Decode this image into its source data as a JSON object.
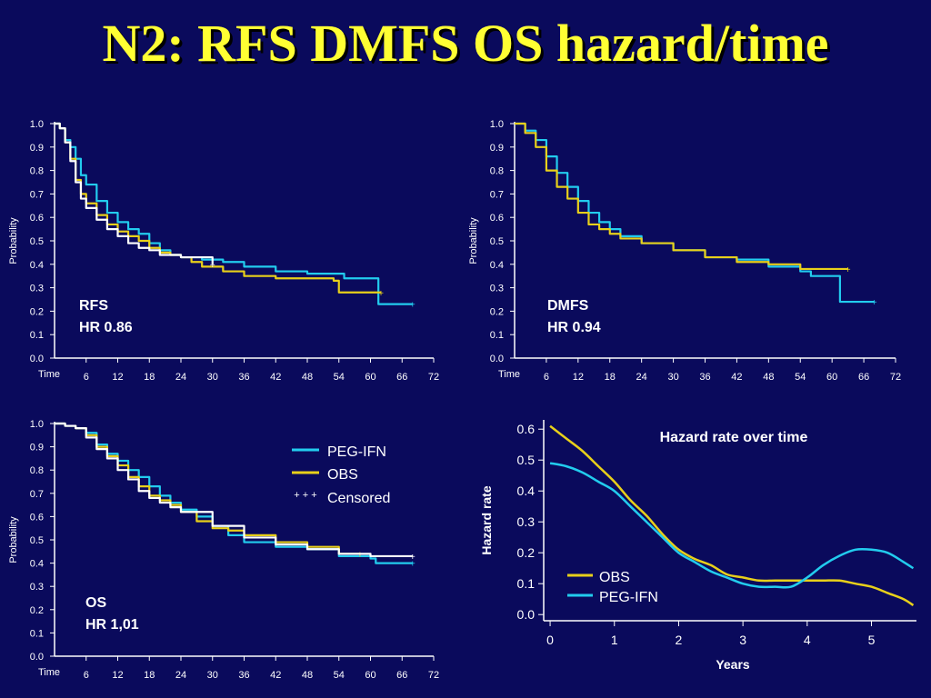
{
  "title": "N2: RFS DMFS OS hazard/time",
  "colors": {
    "background": "#0a0a5c",
    "title": "#ffff33",
    "peg_ifn": "#22ccee",
    "obs": "#e8d01a",
    "obs_km": "#ffffff",
    "axis": "#ffffff"
  },
  "km_axis": {
    "ylabel": "Probability",
    "x_start_label": "Time",
    "x_ticks": [
      "6",
      "12",
      "18",
      "24",
      "30",
      "36",
      "42",
      "48",
      "54",
      "60",
      "66",
      "72"
    ],
    "y_ticks": [
      "0.0",
      "0.1",
      "0.2",
      "0.3",
      "0.4",
      "0.5",
      "0.6",
      "0.7",
      "0.8",
      "0.9",
      "1.0"
    ]
  },
  "legend": {
    "peg_ifn": "PEG-IFN",
    "obs": "OBS",
    "censored_marker": "+ + +",
    "censored": "Censored"
  },
  "chart_data": [
    {
      "type": "line",
      "id": "rfs",
      "label_line1": "RFS",
      "label_line2": "HR 0.86",
      "xlim": [
        0,
        72
      ],
      "ylim": [
        0,
        1
      ],
      "series": [
        {
          "name": "PEG-IFN",
          "color": "#22ccee",
          "points": [
            [
              0,
              1.0
            ],
            [
              1,
              0.98
            ],
            [
              2,
              0.93
            ],
            [
              3,
              0.9
            ],
            [
              4,
              0.85
            ],
            [
              5,
              0.78
            ],
            [
              6,
              0.74
            ],
            [
              8,
              0.67
            ],
            [
              10,
              0.62
            ],
            [
              12,
              0.58
            ],
            [
              14,
              0.55
            ],
            [
              16,
              0.53
            ],
            [
              18,
              0.49
            ],
            [
              20,
              0.46
            ],
            [
              22,
              0.44
            ],
            [
              24,
              0.43
            ],
            [
              28,
              0.42
            ],
            [
              32,
              0.41
            ],
            [
              36,
              0.39
            ],
            [
              42,
              0.37
            ],
            [
              48,
              0.36
            ],
            [
              54,
              0.36
            ],
            [
              55,
              0.34
            ],
            [
              61,
              0.34
            ],
            [
              61.5,
              0.23
            ],
            [
              68,
              0.23
            ]
          ]
        },
        {
          "name": "OBS",
          "color": "#e8d01a",
          "points": [
            [
              0,
              1.0
            ],
            [
              1,
              0.98
            ],
            [
              2,
              0.92
            ],
            [
              3,
              0.85
            ],
            [
              4,
              0.76
            ],
            [
              5,
              0.7
            ],
            [
              6,
              0.66
            ],
            [
              8,
              0.61
            ],
            [
              10,
              0.57
            ],
            [
              12,
              0.54
            ],
            [
              14,
              0.52
            ],
            [
              16,
              0.5
            ],
            [
              18,
              0.47
            ],
            [
              20,
              0.45
            ],
            [
              22,
              0.44
            ],
            [
              24,
              0.43
            ],
            [
              26,
              0.41
            ],
            [
              28,
              0.39
            ],
            [
              32,
              0.37
            ],
            [
              36,
              0.35
            ],
            [
              42,
              0.34
            ],
            [
              48,
              0.34
            ],
            [
              53,
              0.33
            ],
            [
              54,
              0.28
            ],
            [
              60,
              0.28
            ],
            [
              62,
              0.28
            ]
          ]
        },
        {
          "name": "OBS-white",
          "color": "#ffffff",
          "points": [
            [
              0,
              1.0
            ],
            [
              1,
              0.98
            ],
            [
              2,
              0.92
            ],
            [
              3,
              0.84
            ],
            [
              4,
              0.75
            ],
            [
              5,
              0.68
            ],
            [
              6,
              0.64
            ],
            [
              8,
              0.59
            ],
            [
              10,
              0.55
            ],
            [
              12,
              0.52
            ],
            [
              14,
              0.49
            ],
            [
              16,
              0.47
            ],
            [
              18,
              0.46
            ],
            [
              20,
              0.44
            ],
            [
              24,
              0.43
            ],
            [
              30,
              0.4
            ]
          ]
        }
      ]
    },
    {
      "type": "line",
      "id": "dmfs",
      "label_line1": "DMFS",
      "label_line2": "HR 0.94",
      "xlim": [
        0,
        72
      ],
      "ylim": [
        0,
        1
      ],
      "series": [
        {
          "name": "PEG-IFN",
          "color": "#22ccee",
          "points": [
            [
              0,
              1.0
            ],
            [
              2,
              0.97
            ],
            [
              4,
              0.93
            ],
            [
              6,
              0.86
            ],
            [
              8,
              0.79
            ],
            [
              10,
              0.73
            ],
            [
              12,
              0.67
            ],
            [
              14,
              0.62
            ],
            [
              16,
              0.58
            ],
            [
              18,
              0.55
            ],
            [
              20,
              0.52
            ],
            [
              24,
              0.49
            ],
            [
              30,
              0.46
            ],
            [
              36,
              0.43
            ],
            [
              42,
              0.42
            ],
            [
              48,
              0.39
            ],
            [
              54,
              0.37
            ],
            [
              56,
              0.35
            ],
            [
              61,
              0.35
            ],
            [
              61.5,
              0.24
            ],
            [
              68,
              0.24
            ]
          ]
        },
        {
          "name": "OBS",
          "color": "#e8d01a",
          "points": [
            [
              0,
              1.0
            ],
            [
              2,
              0.96
            ],
            [
              4,
              0.9
            ],
            [
              6,
              0.8
            ],
            [
              8,
              0.73
            ],
            [
              10,
              0.68
            ],
            [
              12,
              0.62
            ],
            [
              14,
              0.57
            ],
            [
              16,
              0.55
            ],
            [
              18,
              0.53
            ],
            [
              20,
              0.51
            ],
            [
              24,
              0.49
            ],
            [
              30,
              0.46
            ],
            [
              36,
              0.43
            ],
            [
              42,
              0.41
            ],
            [
              48,
              0.4
            ],
            [
              54,
              0.38
            ],
            [
              60,
              0.38
            ],
            [
              63,
              0.38
            ]
          ]
        }
      ]
    },
    {
      "type": "line",
      "id": "os",
      "label_line1": "OS",
      "label_line2": "HR 1,01",
      "xlim": [
        0,
        72
      ],
      "ylim": [
        0,
        1
      ],
      "series": [
        {
          "name": "PEG-IFN",
          "color": "#22ccee",
          "points": [
            [
              0,
              1.0
            ],
            [
              2,
              0.99
            ],
            [
              4,
              0.98
            ],
            [
              6,
              0.96
            ],
            [
              8,
              0.91
            ],
            [
              10,
              0.87
            ],
            [
              12,
              0.84
            ],
            [
              14,
              0.8
            ],
            [
              16,
              0.77
            ],
            [
              18,
              0.73
            ],
            [
              20,
              0.69
            ],
            [
              22,
              0.66
            ],
            [
              24,
              0.63
            ],
            [
              27,
              0.6
            ],
            [
              30,
              0.56
            ],
            [
              33,
              0.52
            ],
            [
              36,
              0.49
            ],
            [
              42,
              0.47
            ],
            [
              48,
              0.46
            ],
            [
              54,
              0.43
            ],
            [
              60,
              0.42
            ],
            [
              61,
              0.4
            ],
            [
              68,
              0.4
            ]
          ]
        },
        {
          "name": "OBS",
          "color": "#e8d01a",
          "points": [
            [
              0,
              1.0
            ],
            [
              2,
              0.99
            ],
            [
              4,
              0.98
            ],
            [
              6,
              0.95
            ],
            [
              8,
              0.9
            ],
            [
              10,
              0.86
            ],
            [
              12,
              0.82
            ],
            [
              14,
              0.77
            ],
            [
              16,
              0.73
            ],
            [
              18,
              0.69
            ],
            [
              20,
              0.67
            ],
            [
              22,
              0.65
            ],
            [
              24,
              0.62
            ],
            [
              27,
              0.58
            ],
            [
              30,
              0.55
            ],
            [
              33,
              0.54
            ],
            [
              36,
              0.52
            ],
            [
              42,
              0.49
            ],
            [
              48,
              0.47
            ],
            [
              54,
              0.44
            ],
            [
              58,
              0.44
            ]
          ]
        },
        {
          "name": "OBS-white",
          "color": "#ffffff",
          "points": [
            [
              0,
              1.0
            ],
            [
              2,
              0.99
            ],
            [
              4,
              0.98
            ],
            [
              6,
              0.94
            ],
            [
              8,
              0.89
            ],
            [
              10,
              0.85
            ],
            [
              12,
              0.8
            ],
            [
              14,
              0.76
            ],
            [
              16,
              0.71
            ],
            [
              18,
              0.68
            ],
            [
              20,
              0.66
            ],
            [
              22,
              0.64
            ],
            [
              24,
              0.62
            ],
            [
              30,
              0.56
            ],
            [
              36,
              0.51
            ],
            [
              42,
              0.48
            ],
            [
              48,
              0.46
            ],
            [
              54,
              0.44
            ],
            [
              60,
              0.43
            ],
            [
              68,
              0.43
            ]
          ]
        }
      ]
    },
    {
      "type": "line",
      "id": "hazard",
      "title": "Hazard rate over time",
      "xlabel": "Years",
      "ylabel": "Hazard rate",
      "x_ticks": [
        0,
        1,
        2,
        3,
        4,
        5
      ],
      "y_ticks": [
        "0.0",
        "0.1",
        "0.2",
        "0.3",
        "0.4",
        "0.5",
        "0.6"
      ],
      "xlim": [
        -0.1,
        5.7
      ],
      "ylim": [
        -0.02,
        0.63
      ],
      "series": [
        {
          "name": "OBS",
          "color": "#e8d01a",
          "points": [
            [
              0,
              0.61
            ],
            [
              0.25,
              0.57
            ],
            [
              0.5,
              0.53
            ],
            [
              0.75,
              0.48
            ],
            [
              1,
              0.43
            ],
            [
              1.25,
              0.37
            ],
            [
              1.5,
              0.32
            ],
            [
              1.75,
              0.26
            ],
            [
              2,
              0.21
            ],
            [
              2.25,
              0.18
            ],
            [
              2.5,
              0.16
            ],
            [
              2.75,
              0.13
            ],
            [
              3,
              0.12
            ],
            [
              3.25,
              0.11
            ],
            [
              3.5,
              0.11
            ],
            [
              3.75,
              0.11
            ],
            [
              4,
              0.11
            ],
            [
              4.25,
              0.11
            ],
            [
              4.5,
              0.11
            ],
            [
              4.75,
              0.1
            ],
            [
              5,
              0.09
            ],
            [
              5.25,
              0.07
            ],
            [
              5.5,
              0.05
            ],
            [
              5.65,
              0.03
            ]
          ]
        },
        {
          "name": "PEG-IFN",
          "color": "#22ccee",
          "points": [
            [
              0,
              0.49
            ],
            [
              0.25,
              0.48
            ],
            [
              0.5,
              0.46
            ],
            [
              0.75,
              0.43
            ],
            [
              1,
              0.4
            ],
            [
              1.25,
              0.35
            ],
            [
              1.5,
              0.3
            ],
            [
              1.75,
              0.25
            ],
            [
              2,
              0.2
            ],
            [
              2.25,
              0.17
            ],
            [
              2.5,
              0.14
            ],
            [
              2.75,
              0.12
            ],
            [
              3,
              0.1
            ],
            [
              3.25,
              0.09
            ],
            [
              3.5,
              0.09
            ],
            [
              3.75,
              0.09
            ],
            [
              4,
              0.12
            ],
            [
              4.25,
              0.16
            ],
            [
              4.5,
              0.19
            ],
            [
              4.75,
              0.21
            ],
            [
              5,
              0.21
            ],
            [
              5.25,
              0.2
            ],
            [
              5.5,
              0.17
            ],
            [
              5.65,
              0.15
            ]
          ]
        }
      ],
      "legend": [
        "OBS",
        "PEG-IFN"
      ]
    }
  ]
}
